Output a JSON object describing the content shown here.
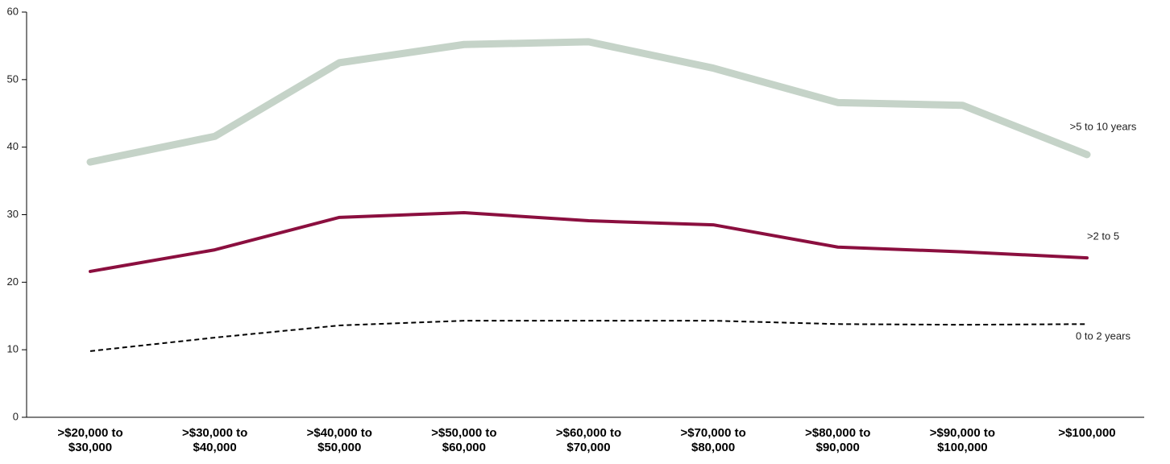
{
  "chart_data": {
    "type": "line",
    "categories": [
      ">$20,000 to\n$30,000",
      ">$30,000 to\n$40,000",
      ">$40,000 to\n$50,000",
      ">$50,000 to\n$60,000",
      ">$60,000 to\n$70,000",
      ">$70,000 to\n$80,000",
      ">$80,000 to\n$90,000",
      ">$90,000 to\n$100,000",
      ">$100,000"
    ],
    "series": [
      {
        "name": ">5 to 10 years",
        "color": "#c5d3c8",
        "values": [
          37.8,
          41.6,
          52.5,
          55.2,
          55.6,
          51.7,
          46.6,
          46.2,
          38.9
        ]
      },
      {
        "name": ">2 to 5",
        "color": "#8b0f3f",
        "values": [
          21.6,
          24.8,
          29.6,
          30.3,
          29.1,
          28.5,
          25.2,
          24.5,
          23.6
        ]
      },
      {
        "name": "0 to 2 years",
        "color": "#000000",
        "values": [
          9.8,
          11.8,
          13.6,
          14.3,
          14.3,
          14.3,
          13.8,
          13.7,
          13.8
        ]
      }
    ],
    "ylim": [
      0,
      60
    ],
    "yticks": [
      0,
      10,
      20,
      30,
      40,
      50,
      60
    ],
    "grid": false
  }
}
